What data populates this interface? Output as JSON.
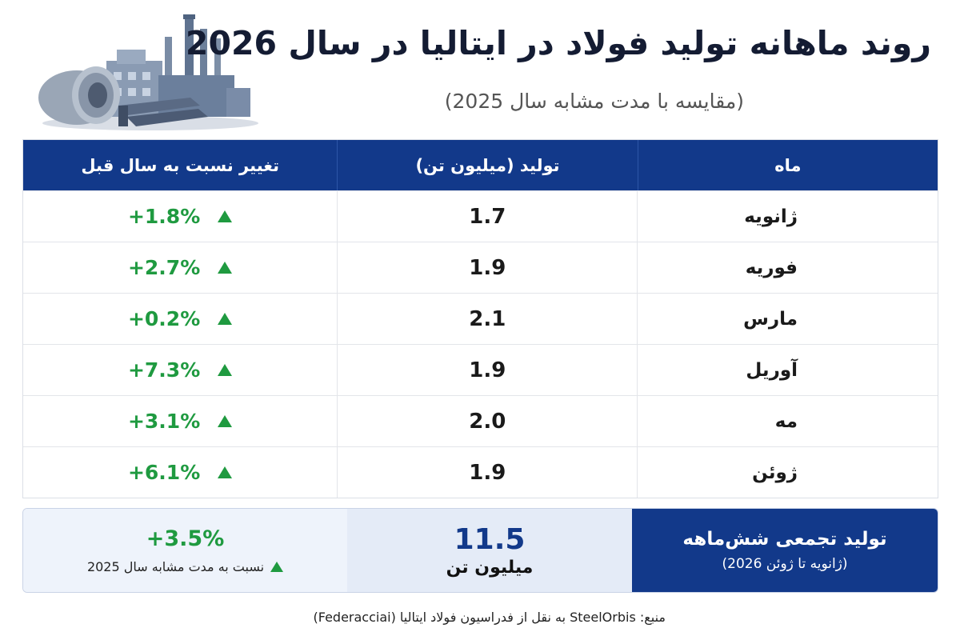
{
  "header": {
    "title": "روند ماهانه تولید فولاد در ایتالیا در سال 2026",
    "subtitle": "(مقایسه با مدت مشابه سال 2025)"
  },
  "table": {
    "columns": [
      "ماه",
      "تولید (میلیون تن)",
      "تغییر نسبت به سال قبل"
    ],
    "rows": [
      {
        "month": "ژانویه",
        "production": "1.7",
        "change": "+1.8%"
      },
      {
        "month": "فوریه",
        "production": "1.9",
        "change": "+2.7%"
      },
      {
        "month": "مارس",
        "production": "2.1",
        "change": "+0.2%"
      },
      {
        "month": "آوریل",
        "production": "1.9",
        "change": "+7.3%"
      },
      {
        "month": "مه",
        "production": "2.0",
        "change": "+3.1%"
      },
      {
        "month": "ژوئن",
        "production": "1.9",
        "change": "+6.1%"
      }
    ]
  },
  "summary": {
    "label": "تولید تجمعی شش‌ماهه",
    "period": "(ژانویه تا ژوئن 2026)",
    "total": "11.5",
    "unit": "میلیون تن",
    "change": "+3.5%",
    "comparison": "نسبت به مدت مشابه سال 2025"
  },
  "source": "منبع: SteelOrbis به نقل از فدراسیون فولاد ایتالیا (Federacciai)",
  "colors": {
    "header_blue": "#12398a",
    "positive_green": "#1f9a40"
  },
  "icons": {
    "illustration": "steel-industry-illustration",
    "increase": "up-triangle-icon"
  }
}
